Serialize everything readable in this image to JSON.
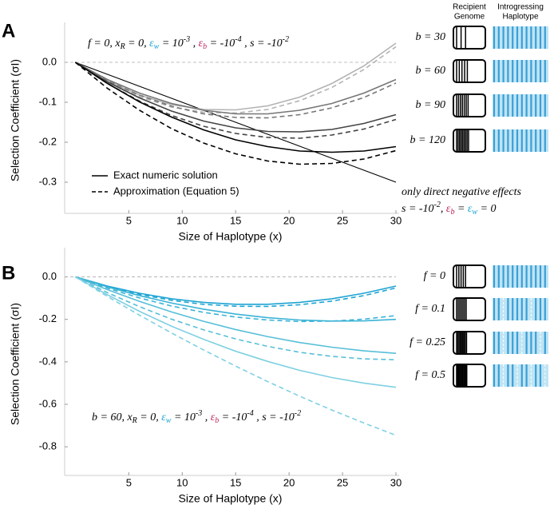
{
  "icon_headers": [
    [
      "Recipient",
      "Genome"
    ],
    [
      "Introgressing",
      "Haplotype"
    ]
  ],
  "chart_data": [
    {
      "type": "line",
      "panel": "A",
      "xlabel": "Size of Haplotype (x)",
      "ylabel": "Selection Coefficient (σI)",
      "x": [
        0,
        3,
        6,
        9,
        12,
        15,
        18,
        21,
        24,
        27,
        30
      ],
      "xlim": [
        -1,
        30
      ],
      "xticks": [
        5,
        10,
        15,
        20,
        25,
        30
      ],
      "ylim": [
        -0.37,
        0.08
      ],
      "yticks": [
        {
          "value": 0,
          "label": "0.0"
        },
        -0.1,
        -0.2,
        -0.3
      ],
      "zero_line": true,
      "params": [
        {
          "text": "f = 0, x"
        },
        {
          "text": "R",
          "style": "sub"
        },
        {
          "text": " = 0,  "
        },
        {
          "text": "ε",
          "color": "#1ea4d2"
        },
        {
          "text": "w",
          "style": "sub",
          "color": "#1ea4d2"
        },
        {
          "text": " = 10"
        },
        {
          "text": "-3",
          "style": "sup"
        },
        {
          "text": " ,  "
        },
        {
          "text": "ε",
          "color": "#c0245c"
        },
        {
          "text": "b",
          "style": "sub",
          "color": "#c0245c"
        },
        {
          "text": " = -10"
        },
        {
          "text": "-4",
          "style": "sup"
        },
        {
          "text": " , s = -10"
        },
        {
          "text": "-2",
          "style": "sup"
        }
      ],
      "legend": [
        {
          "label": "Exact numeric solution",
          "dash": false
        },
        {
          "label": "Approximation (Equation 5)",
          "dash": true
        }
      ],
      "curves": [
        {
          "label": "b = 30",
          "color": "#b3b3b3",
          "exact": [
            0,
            -0.047,
            -0.082,
            -0.106,
            -0.118,
            -0.119,
            -0.109,
            -0.087,
            -0.053,
            -0.009,
            0.048
          ],
          "approx": [
            0,
            -0.049,
            -0.086,
            -0.112,
            -0.125,
            -0.127,
            -0.118,
            -0.096,
            -0.063,
            -0.018,
            0.039
          ]
        },
        {
          "label": "b = 60",
          "color": "#777777",
          "exact": [
            0,
            -0.043,
            -0.077,
            -0.103,
            -0.12,
            -0.129,
            -0.129,
            -0.12,
            -0.103,
            -0.077,
            -0.043
          ],
          "approx": [
            0,
            -0.046,
            -0.082,
            -0.11,
            -0.129,
            -0.138,
            -0.139,
            -0.131,
            -0.114,
            -0.088,
            -0.052
          ]
        },
        {
          "label": "b = 90",
          "color": "#444444",
          "exact": [
            0,
            -0.049,
            -0.089,
            -0.122,
            -0.147,
            -0.164,
            -0.173,
            -0.174,
            -0.168,
            -0.153,
            -0.131
          ],
          "approx": [
            0,
            -0.053,
            -0.097,
            -0.133,
            -0.16,
            -0.178,
            -0.188,
            -0.19,
            -0.182,
            -0.167,
            -0.143
          ]
        },
        {
          "label": "b = 120",
          "color": "#000000",
          "exact": [
            0,
            -0.053,
            -0.099,
            -0.137,
            -0.169,
            -0.194,
            -0.211,
            -0.222,
            -0.225,
            -0.222,
            -0.211
          ],
          "approx": [
            0,
            -0.065,
            -0.12,
            -0.166,
            -0.202,
            -0.229,
            -0.247,
            -0.255,
            -0.253,
            -0.242,
            -0.221
          ]
        }
      ],
      "reference": {
        "color": "#000000",
        "values": [
          0,
          -0.03,
          -0.06,
          -0.09,
          -0.12,
          -0.15,
          -0.18,
          -0.21,
          -0.24,
          -0.27,
          -0.3
        ],
        "note": [
          [
            {
              "text": "only direct negative effects"
            }
          ],
          [
            {
              "text": "s = -10"
            },
            {
              "text": "-2",
              "style": "sup"
            },
            {
              "text": ",  "
            },
            {
              "text": "ε",
              "color": "#c0245c"
            },
            {
              "text": "b",
              "style": "sub",
              "color": "#c0245c"
            },
            {
              "text": " = "
            },
            {
              "text": "ε",
              "color": "#1ea4d2"
            },
            {
              "text": "w",
              "style": "sub",
              "color": "#1ea4d2"
            },
            {
              "text": " = 0"
            }
          ]
        ]
      }
    },
    {
      "type": "line",
      "panel": "B",
      "xlabel": "Size of Haplotype (x)",
      "ylabel": "Selection Coefficient (σI)",
      "x": [
        0,
        3,
        6,
        9,
        12,
        15,
        18,
        21,
        24,
        27,
        30
      ],
      "xlim": [
        -1,
        30
      ],
      "xticks": [
        5,
        10,
        15,
        20,
        25,
        30
      ],
      "ylim": [
        -0.92,
        0.1
      ],
      "yticks": [
        {
          "value": 0,
          "label": "0.0"
        },
        -0.2,
        -0.4,
        -0.6,
        -0.8
      ],
      "zero_line": true,
      "params": [
        {
          "text": "b = 60, x"
        },
        {
          "text": "R",
          "style": "sub"
        },
        {
          "text": " = 0,  "
        },
        {
          "text": "ε",
          "color": "#1ea4d2"
        },
        {
          "text": "w",
          "style": "sub",
          "color": "#1ea4d2"
        },
        {
          "text": " = 10"
        },
        {
          "text": "-3",
          "style": "sup"
        },
        {
          "text": " ,  "
        },
        {
          "text": "ε",
          "color": "#c0245c"
        },
        {
          "text": "b",
          "style": "sub",
          "color": "#c0245c"
        },
        {
          "text": " = -10"
        },
        {
          "text": "-4",
          "style": "sup"
        },
        {
          "text": " , s = -10"
        },
        {
          "text": "-2",
          "style": "sup"
        }
      ],
      "curves": [
        {
          "label": "f = 0",
          "color": "#1ea4d2",
          "exact": [
            0,
            -0.043,
            -0.077,
            -0.103,
            -0.12,
            -0.129,
            -0.129,
            -0.12,
            -0.103,
            -0.077,
            -0.043
          ],
          "approx": [
            0,
            -0.046,
            -0.082,
            -0.11,
            -0.129,
            -0.138,
            -0.139,
            -0.131,
            -0.114,
            -0.088,
            -0.052
          ]
        },
        {
          "label": "f = 0.1",
          "color": "#3bb3d6",
          "exact": [
            0,
            -0.047,
            -0.088,
            -0.123,
            -0.152,
            -0.175,
            -0.192,
            -0.203,
            -0.208,
            -0.207,
            -0.2
          ],
          "approx": [
            0,
            -0.053,
            -0.099,
            -0.137,
            -0.167,
            -0.189,
            -0.203,
            -0.21,
            -0.208,
            -0.199,
            -0.182
          ]
        },
        {
          "label": "f = 0.25",
          "color": "#57bfd8",
          "exact": [
            0,
            -0.06,
            -0.115,
            -0.165,
            -0.209,
            -0.248,
            -0.281,
            -0.309,
            -0.331,
            -0.348,
            -0.36
          ],
          "approx": [
            0,
            -0.074,
            -0.14,
            -0.199,
            -0.249,
            -0.292,
            -0.327,
            -0.355,
            -0.374,
            -0.386,
            -0.39
          ]
        },
        {
          "label": "f = 0.5",
          "color": "#7fd0e2",
          "exact": [
            0,
            -0.084,
            -0.162,
            -0.232,
            -0.294,
            -0.35,
            -0.398,
            -0.44,
            -0.474,
            -0.5,
            -0.52
          ],
          "approx": [
            0,
            -0.092,
            -0.18,
            -0.264,
            -0.344,
            -0.42,
            -0.493,
            -0.562,
            -0.627,
            -0.688,
            -0.746
          ]
        }
      ]
    }
  ]
}
